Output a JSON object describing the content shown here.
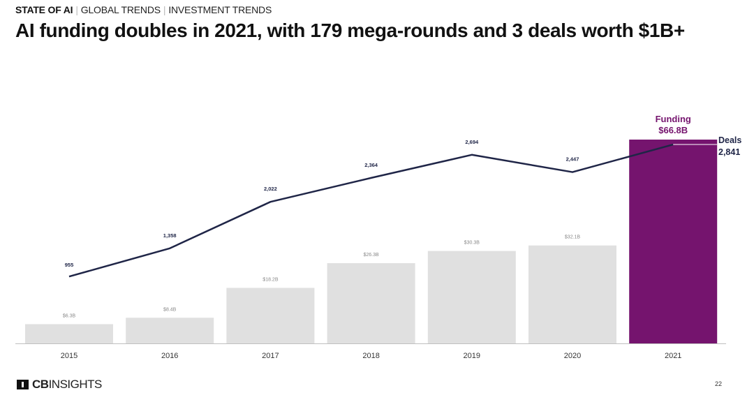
{
  "header": {
    "breadcrumb": [
      "STATE OF AI",
      "GLOBAL TRENDS",
      "INVESTMENT TRENDS"
    ],
    "title": "AI funding doubles in 2021, with 179 mega-rounds and 3 deals worth $1B+"
  },
  "chart_data": {
    "type": "bar",
    "categories": [
      "2015",
      "2016",
      "2017",
      "2018",
      "2019",
      "2020",
      "2021"
    ],
    "series": [
      {
        "name": "Funding",
        "kind": "bar",
        "values": [
          6.3,
          8.4,
          18.2,
          26.3,
          30.3,
          32.1,
          66.8
        ],
        "labels": [
          "$6.3B",
          "$8.4B",
          "$18.2B",
          "$26.3B",
          "$30.3B",
          "$32.1B",
          "$66.8B"
        ],
        "unit": "$B"
      },
      {
        "name": "Deals",
        "kind": "line",
        "values": [
          955,
          1358,
          2022,
          2364,
          2694,
          2447,
          2841
        ],
        "labels": [
          "955",
          "1,358",
          "2,022",
          "2,364",
          "2,694",
          "2,447",
          "2,841"
        ]
      }
    ],
    "highlight": {
      "category": "2021",
      "funding_title": "Funding",
      "funding_value": "$66.8B",
      "deals_title": "Deals",
      "deals_value": "2,841"
    },
    "colors": {
      "bar": "#e0e0e0",
      "highlight_bar": "#75146e",
      "line": "#1f2547",
      "funding_label": "#75146e",
      "deals_label": "#1f2547",
      "axis": "#bfbfbf"
    },
    "grid": false,
    "legend": "none"
  },
  "footer": {
    "logo_left": "CB",
    "logo_right": "INSIGHTS",
    "logo_icon": "cb-insights-logo-icon",
    "page_number": "22"
  }
}
